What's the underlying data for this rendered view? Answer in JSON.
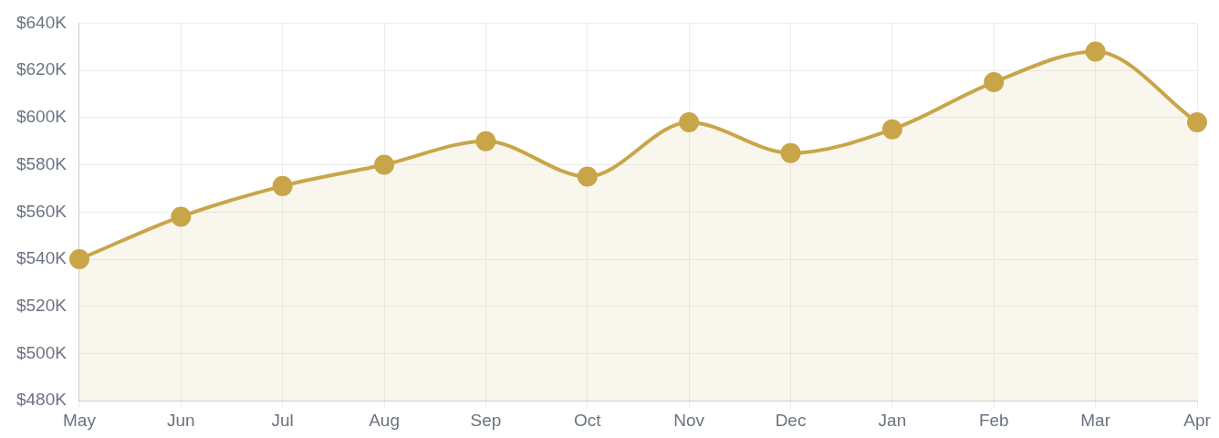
{
  "chart_data": {
    "type": "area",
    "categories": [
      "May",
      "Jun",
      "Jul",
      "Aug",
      "Sep",
      "Oct",
      "Nov",
      "Dec",
      "Jan",
      "Feb",
      "Mar",
      "Apr"
    ],
    "series": [
      {
        "color": "#c9a54a",
        "values": [
          540000,
          558000,
          571000,
          580000,
          590000,
          575000,
          598000,
          585000,
          595000,
          615000,
          628000,
          598000
        ]
      }
    ],
    "ylim": [
      480000,
      640000
    ],
    "yticks": [
      {
        "value": 480000,
        "label": "$480K"
      },
      {
        "value": 500000,
        "label": "$500K"
      },
      {
        "value": 520000,
        "label": "$520K"
      },
      {
        "value": 540000,
        "label": "$540K"
      },
      {
        "value": 560000,
        "label": "$560K"
      },
      {
        "value": 580000,
        "label": "$580K"
      },
      {
        "value": 600000,
        "label": "$600K"
      },
      {
        "value": 620000,
        "label": "$620K"
      },
      {
        "value": 640000,
        "label": "$640K"
      }
    ],
    "grid": true,
    "legend": false,
    "marker": "circle",
    "line_style": "solid"
  }
}
